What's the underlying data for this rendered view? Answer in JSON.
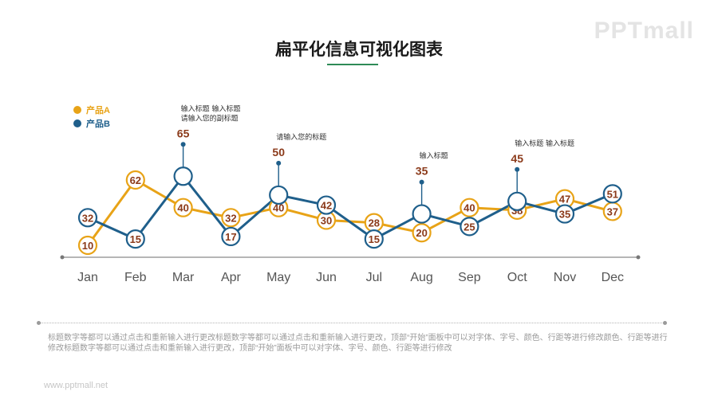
{
  "header": {
    "title": "扁平化信息可视化图表",
    "logo": "PPTmall",
    "accent_color": "#2e8b57"
  },
  "legend": [
    {
      "label": "产品A",
      "color": "#e8a317"
    },
    {
      "label": "产品B",
      "color": "#1f5f8b"
    }
  ],
  "chart_data": {
    "type": "line",
    "categories": [
      "Jan",
      "Feb",
      "Mar",
      "Apr",
      "May",
      "Jun",
      "Jul",
      "Aug",
      "Sep",
      "Oct",
      "Nov",
      "Dec"
    ],
    "series": [
      {
        "name": "产品A",
        "color": "#e8a317",
        "values": [
          10,
          62,
          40,
          32,
          40,
          30,
          28,
          20,
          40,
          38,
          47,
          37
        ]
      },
      {
        "name": "产品B",
        "color": "#1f5f8b",
        "values": [
          32,
          15,
          65,
          17,
          50,
          42,
          15,
          35,
          25,
          45,
          35,
          51
        ]
      }
    ],
    "data_label_color": "#8b3a1a",
    "annotations": [
      {
        "category": "Mar",
        "series": "产品B",
        "value_label": "65",
        "text_lines": [
          "输入标题 输入标题",
          "请输入您的副标题"
        ]
      },
      {
        "category": "May",
        "series": "产品B",
        "value_label": "50",
        "text_lines": [
          "请输入您的标题"
        ]
      },
      {
        "category": "Aug",
        "series": "产品B",
        "value_label": "35",
        "text_lines": [
          "输入标题"
        ]
      },
      {
        "category": "Oct",
        "series": "产品B",
        "value_label": "45",
        "text_lines": [
          "输入标题 输入标题"
        ]
      }
    ],
    "legend_position": "top-left",
    "grid": false
  },
  "description": "标题数字等都可以通过点击和重新输入进行更改标题数字等都可以通过点击和重新输入进行更改，顶部“开始”面板中可以对字体、字号、颜色、行距等进行修改颜色、行距等进行修改标题数字等都可以通过点击和重新输入进行更改，顶部“开始”面板中可以对字体、字号、颜色、行距等进行修改",
  "footer": {
    "url": "www.pptmall.net"
  }
}
